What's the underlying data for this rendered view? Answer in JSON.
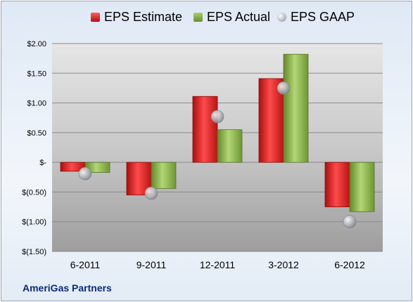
{
  "chart_data": {
    "type": "bar",
    "title": "",
    "categories": [
      "6-2011",
      "9-2011",
      "12-2011",
      "3-2012",
      "6-2012"
    ],
    "series": [
      {
        "name": "EPS Estimate",
        "color": "#d42a2a",
        "values": [
          -0.15,
          -0.55,
          1.11,
          1.41,
          -0.75
        ]
      },
      {
        "name": "EPS Actual",
        "color": "#8ab14a",
        "values": [
          -0.17,
          -0.44,
          0.55,
          1.82,
          -0.83
        ]
      },
      {
        "name": "EPS GAAP",
        "color": "#b9bcc2",
        "kind": "marker",
        "values": [
          -0.19,
          -0.52,
          0.77,
          1.25,
          -1.0
        ]
      }
    ],
    "yticks": [
      "$2.00",
      "$1.50",
      "$1.00",
      "$0.50",
      "$-",
      "$(0.50)",
      "$(1.00)",
      "$(1.50)"
    ],
    "ytick_values": [
      2.0,
      1.5,
      1.0,
      0.5,
      0,
      -0.5,
      -1.0,
      -1.5
    ],
    "ylim": [
      -1.5,
      2.0
    ],
    "grid": true,
    "legend_position": "top"
  },
  "footer": {
    "company": "AmeriGas Partners"
  }
}
